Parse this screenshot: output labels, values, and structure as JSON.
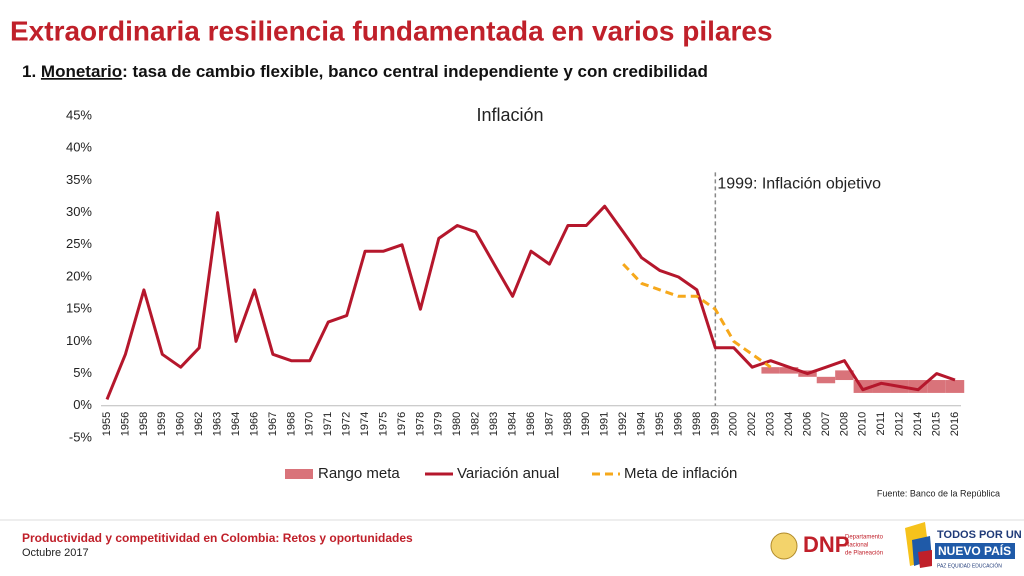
{
  "header": {
    "title": "Extraordinaria resiliencia fundamentada en varios pilares",
    "subtitle_number": "1.",
    "subtitle_key": "Monetario",
    "subtitle_rest": ": tasa de cambio flexible, banco central independiente y con credibilidad"
  },
  "chart_data": {
    "type": "line",
    "title": "Inflación",
    "categories": [
      "1955",
      "1956",
      "1958",
      "1959",
      "1960",
      "1962",
      "1963",
      "1964",
      "1966",
      "1967",
      "1968",
      "1970",
      "1971",
      "1972",
      "1974",
      "1975",
      "1976",
      "1978",
      "1979",
      "1980",
      "1982",
      "1983",
      "1984",
      "1986",
      "1987",
      "1988",
      "1990",
      "1991",
      "1992",
      "1994",
      "1995",
      "1996",
      "1998",
      "1999",
      "2000",
      "2002",
      "2003",
      "2004",
      "2006",
      "2007",
      "2008",
      "2010",
      "2011",
      "2012",
      "2014",
      "2015",
      "2016"
    ],
    "series": [
      {
        "name": "Variación anual",
        "color": "#b5172c",
        "values": [
          1,
          8,
          18,
          8,
          6,
          9,
          30,
          10,
          18,
          8,
          7,
          7,
          13,
          14,
          24,
          24,
          25,
          15,
          26,
          28,
          27,
          22,
          17,
          24,
          22,
          28,
          28,
          31,
          27,
          23,
          21,
          20,
          18,
          9,
          9,
          6,
          7,
          6,
          5,
          6,
          7,
          2.5,
          3.5,
          3,
          2.5,
          5,
          4
        ]
      },
      {
        "name": "Meta de inflación",
        "color": "#f6a81b",
        "values": [
          null,
          null,
          null,
          null,
          null,
          null,
          null,
          null,
          null,
          null,
          null,
          null,
          null,
          null,
          null,
          null,
          null,
          null,
          null,
          null,
          null,
          null,
          null,
          null,
          null,
          null,
          null,
          null,
          22,
          19,
          18,
          17,
          17,
          15,
          10,
          8,
          6,
          null,
          null,
          null,
          null,
          null,
          null,
          null,
          null,
          null,
          null
        ]
      }
    ],
    "range": {
      "name": "Rango meta",
      "color": "#d9737a",
      "low": [
        null,
        null,
        null,
        null,
        null,
        null,
        null,
        null,
        null,
        null,
        null,
        null,
        null,
        null,
        null,
        null,
        null,
        null,
        null,
        null,
        null,
        null,
        null,
        null,
        null,
        null,
        null,
        null,
        null,
        null,
        null,
        null,
        null,
        null,
        null,
        null,
        5,
        5,
        4.5,
        3.5,
        4,
        2,
        2,
        2,
        2,
        2,
        2
      ],
      "high": [
        null,
        null,
        null,
        null,
        null,
        null,
        null,
        null,
        null,
        null,
        null,
        null,
        null,
        null,
        null,
        null,
        null,
        null,
        null,
        null,
        null,
        null,
        null,
        null,
        null,
        null,
        null,
        null,
        null,
        null,
        null,
        null,
        null,
        null,
        null,
        null,
        6,
        6,
        5.5,
        4.5,
        5.5,
        4,
        4,
        4,
        4,
        4,
        4
      ]
    },
    "ylim": [
      -5,
      45
    ],
    "yticks": [
      {
        "value": -5,
        "label": "-5%"
      },
      {
        "value": 0,
        "label": "0%"
      },
      {
        "value": 5,
        "label": "5%"
      },
      {
        "value": 10,
        "label": "10%"
      },
      {
        "value": 15,
        "label": "15%"
      },
      {
        "value": 20,
        "label": "20%"
      },
      {
        "value": 25,
        "label": "25%"
      },
      {
        "value": 30,
        "label": "30%"
      },
      {
        "value": 35,
        "label": "35%"
      },
      {
        "value": 40,
        "label": "40%"
      },
      {
        "value": 45,
        "label": "45%"
      }
    ],
    "annotation": {
      "text": "1999: Inflación objetivo",
      "category": "1999"
    },
    "source": "Fuente: Banco de la República"
  },
  "footer": {
    "title": "Productividad y competitividad en Colombia: Retos y oportunidades",
    "date": "Octubre 2017",
    "logo1": "DNP",
    "logo1_sub1": "Departamento",
    "logo1_sub2": "Nacional",
    "logo1_sub3": "de Planeación",
    "logo2_line1": "TODOS POR UN",
    "logo2_line2": "NUEVO PAÍS",
    "logo2_line3": "PAZ  EQUIDAD  EDUCACIÓN"
  }
}
